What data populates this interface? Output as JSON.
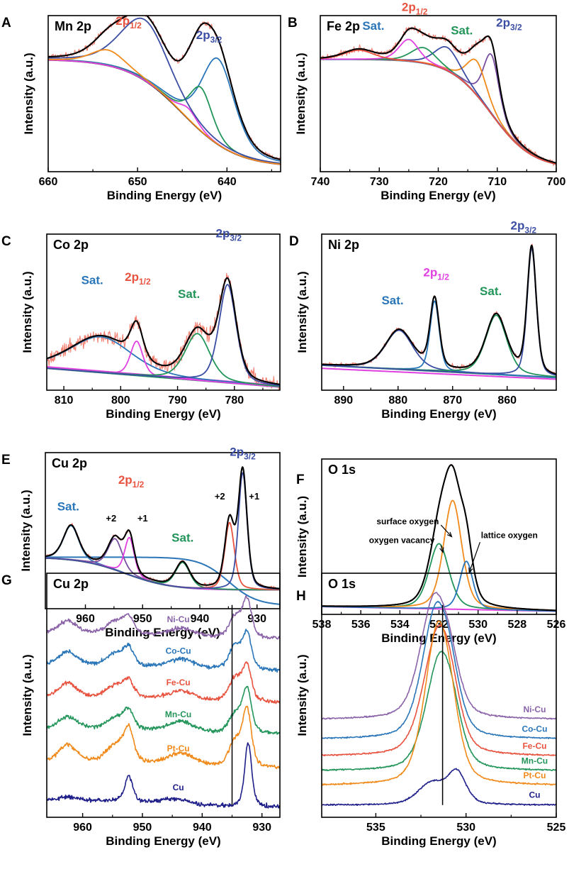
{
  "chart_data": [
    {
      "id": "A",
      "type": "line",
      "title": "Mn 2p",
      "xlabel": "Binding Energy (eV)",
      "ylabel": "Intensity (a.u.)",
      "xlim": [
        660,
        634
      ],
      "xticks": [
        660,
        650,
        640
      ],
      "annotations": [
        {
          "text": "2p",
          "sub": "1/2",
          "x": 651,
          "y": 0.94,
          "color": "#e8533f"
        },
        {
          "text": "2p",
          "sub": "3/2",
          "x": 642,
          "y": 0.85,
          "color": "#3b4ea3"
        }
      ],
      "components": [
        {
          "name": "raw",
          "color": "#f28072",
          "noise": 0.025,
          "sum": true
        },
        {
          "name": "background",
          "color": "#1a1a1a",
          "bg": {
            "type": "step",
            "low": 0.03,
            "high": 0.72,
            "center": 645,
            "width": 3
          }
        },
        {
          "name": "peak-1",
          "color": "#2a76b8",
          "peaks": [
            [
              641.0,
              0.55,
              2.2
            ]
          ]
        },
        {
          "name": "peak-2",
          "color": "#23955a",
          "peaks": [
            [
              642.9,
              0.28,
              1.5
            ]
          ]
        },
        {
          "name": "peak-3",
          "color": "#e040e0",
          "peaks": [
            [
              644.3,
              0.07,
              1.2
            ]
          ]
        },
        {
          "name": "peak-4",
          "color": "#3b4ea3",
          "peaks": [
            [
              649.2,
              0.39,
              3.2
            ]
          ]
        },
        {
          "name": "peak-5",
          "color": "#f08a1a",
          "peaks": [
            [
              653.3,
              0.1,
              2.2
            ]
          ]
        },
        {
          "name": "envelope",
          "color": "#000000",
          "sum": true
        }
      ]
    },
    {
      "id": "B",
      "type": "line",
      "title": "Fe 2p",
      "xlabel": "Binding Energy (eV)",
      "ylabel": "Intensity (a.u.)",
      "xlim": [
        740,
        700
      ],
      "xticks": [
        740,
        730,
        720,
        710,
        700
      ],
      "annotations": [
        {
          "text": "Sat.",
          "x": 731,
          "y": 0.91,
          "color": "#2a76b8"
        },
        {
          "text": "2p",
          "sub": "1/2",
          "x": 724,
          "y": 1.03,
          "color": "#e8533f"
        },
        {
          "text": "Sat.",
          "x": 716,
          "y": 0.88,
          "color": "#23955a"
        },
        {
          "text": "2p",
          "sub": "3/2",
          "x": 708,
          "y": 0.93,
          "color": "#3b4ea3"
        }
      ],
      "components": [
        {
          "name": "raw",
          "color": "#f28072",
          "noise": 0.03,
          "sum": true
        },
        {
          "name": "background",
          "color": "#2a76b8",
          "bg": {
            "type": "step",
            "low": 0.02,
            "high": 0.72,
            "center": 711,
            "width": 3.5
          }
        },
        {
          "name": "peak-1",
          "color": "#7a4ea0",
          "peaks": [
            [
              711.0,
              0.38,
              1.6
            ]
          ]
        },
        {
          "name": "peak-2",
          "color": "#f08a1a",
          "peaks": [
            [
              713.5,
              0.22,
              2.0
            ]
          ]
        },
        {
          "name": "peak-3",
          "color": "#3b4ea3",
          "peaks": [
            [
              718.5,
              0.15,
              2.5
            ]
          ]
        },
        {
          "name": "peak-4",
          "color": "#23955a",
          "peaks": [
            [
              722.5,
              0.1,
              2.5
            ]
          ]
        },
        {
          "name": "peak-5",
          "color": "#e040e0",
          "peaks": [
            [
              725.0,
              0.14,
              2.0
            ]
          ]
        },
        {
          "name": "peak-6",
          "color": "#e8533f",
          "peaks": [
            [
              733.5,
              0.06,
              3.0
            ]
          ]
        },
        {
          "name": "envelope",
          "color": "#000000",
          "sum": true
        }
      ]
    },
    {
      "id": "C",
      "type": "line",
      "title": "Co 2p",
      "xlabel": "Binding Energy (eV)",
      "ylabel": "Intensity (a.u.)",
      "xlim": [
        813,
        772
      ],
      "xticks": [
        810,
        800,
        790,
        780
      ],
      "annotations": [
        {
          "text": "Sat.",
          "x": 805,
          "y": 0.68,
          "color": "#2a76b8"
        },
        {
          "text": "2p",
          "sub": "1/2",
          "x": 797,
          "y": 0.7,
          "color": "#e8533f"
        },
        {
          "text": "Sat.",
          "x": 788,
          "y": 0.59,
          "color": "#23955a"
        },
        {
          "text": "2p",
          "sub": "3/2",
          "x": 781,
          "y": 0.98,
          "color": "#3b4ea3"
        }
      ],
      "components": [
        {
          "name": "raw",
          "color": "#f28072",
          "noise": 0.07,
          "sum": true
        },
        {
          "name": "background-1",
          "color": "#23955a",
          "bg": {
            "type": "linear",
            "a": 0.02,
            "b": 0.14
          }
        },
        {
          "name": "background-2",
          "color": "#e040e0",
          "bg": {
            "type": "linear",
            "a": 0.03,
            "b": 0.15
          }
        },
        {
          "name": "peak-1",
          "color": "#2a76b8",
          "peaks": [
            [
              803.5,
              0.23,
              6.5
            ]
          ]
        },
        {
          "name": "peak-2",
          "color": "#e040e0",
          "peaks": [
            [
              797.2,
              0.22,
              1.3
            ]
          ]
        },
        {
          "name": "peak-3",
          "color": "#23955a",
          "peaks": [
            [
              786.5,
              0.3,
              2.6
            ]
          ]
        },
        {
          "name": "peak-4",
          "color": "#3b4ea3",
          "peaks": [
            [
              781.2,
              0.63,
              1.8
            ]
          ]
        },
        {
          "name": "envelope",
          "color": "#000000",
          "sum": true
        }
      ]
    },
    {
      "id": "D",
      "type": "line",
      "title": "Ni 2p",
      "xlabel": "Binding Energy (eV)",
      "ylabel": "Intensity (a.u.)",
      "xlim": [
        894,
        851
      ],
      "xticks": [
        890,
        880,
        870,
        860
      ],
      "annotations": [
        {
          "text": "Sat.",
          "x": 881,
          "y": 0.55,
          "color": "#2a76b8"
        },
        {
          "text": "2p",
          "sub": "1/2",
          "x": 873,
          "y": 0.73,
          "color": "#e040e0"
        },
        {
          "text": "Sat.",
          "x": 863,
          "y": 0.61,
          "color": "#23955a"
        },
        {
          "text": "2p",
          "sub": "3/2",
          "x": 857,
          "y": 1.03,
          "color": "#3b4ea3"
        }
      ],
      "components": [
        {
          "name": "raw",
          "color": "#f28072",
          "noise": 0.022,
          "sum": true
        },
        {
          "name": "background-1",
          "color": "#23955a",
          "bg": {
            "type": "linear",
            "a": 0.08,
            "b": 0.16
          }
        },
        {
          "name": "background-2",
          "color": "#e040e0",
          "bg": {
            "type": "linear",
            "a": 0.07,
            "b": 0.14
          }
        },
        {
          "name": "peak-1",
          "color": "#3b4ea3",
          "peaks": [
            [
              879.8,
              0.25,
              3.0
            ]
          ]
        },
        {
          "name": "peak-2",
          "color": "#2a76b8",
          "peaks": [
            [
              873.3,
              0.45,
              1.0
            ]
          ]
        },
        {
          "name": "peak-3",
          "color": "#23955a",
          "peaks": [
            [
              862.0,
              0.38,
              2.3
            ]
          ]
        },
        {
          "name": "peak-4",
          "color": "#3b4ea3",
          "peaks": [
            [
              855.5,
              0.82,
              1.0
            ]
          ]
        },
        {
          "name": "envelope",
          "color": "#000000",
          "sum": true
        }
      ]
    },
    {
      "id": "E",
      "type": "line",
      "title": "Cu 2p",
      "xlabel": "Binding Energy (eV)",
      "ylabel": "Intensity (a.u.)",
      "xlim": [
        967,
        926
      ],
      "xticks": [
        960,
        950,
        940,
        930
      ],
      "annotations": [
        {
          "text": "Sat.",
          "x": 963,
          "y": 0.63,
          "color": "#2a76b8"
        },
        {
          "text": "2p",
          "sub": "1/2",
          "x": 952,
          "y": 0.8,
          "color": "#e8533f"
        },
        {
          "text": "+2",
          "x": 955.5,
          "y": 0.56,
          "color": "#000000",
          "size": "m"
        },
        {
          "text": "+1",
          "x": 950,
          "y": 0.56,
          "color": "#000000",
          "size": "m"
        },
        {
          "text": "Sat.",
          "x": 943,
          "y": 0.43,
          "color": "#23955a"
        },
        {
          "text": "+2",
          "x": 936.5,
          "y": 0.7,
          "color": "#000000",
          "size": "m"
        },
        {
          "text": "+1",
          "x": 930.5,
          "y": 0.7,
          "color": "#000000",
          "size": "m"
        },
        {
          "text": "2p",
          "sub": "3/2",
          "x": 932.5,
          "y": 0.98,
          "color": "#3b4ea3"
        }
      ],
      "components": [
        {
          "name": "raw",
          "color": "#f28072",
          "noise": 0.018,
          "sum": true
        },
        {
          "name": "background-1",
          "color": "#23955a",
          "bg": {
            "type": "step",
            "low": 0.12,
            "high": 0.33,
            "center": 953,
            "width": 4
          }
        },
        {
          "name": "background-2",
          "color": "#2a76b8",
          "bg": {
            "type": "step",
            "low": 0.02,
            "high": 0.33,
            "center": 935,
            "width": 2.5
          }
        },
        {
          "name": "peak-1",
          "color": "#2a76b8",
          "peaks": [
            [
              962.5,
              0.22,
              1.6
            ]
          ]
        },
        {
          "name": "peak-2",
          "color": "#7a4ea0",
          "peaks": [
            [
              954.8,
              0.2,
              1.5
            ]
          ]
        },
        {
          "name": "peak-3",
          "color": "#e040e0",
          "peaks": [
            [
              952.3,
              0.24,
              1.0
            ]
          ]
        },
        {
          "name": "peak-4",
          "color": "#23955a",
          "peaks": [
            [
              943.0,
              0.16,
              1.5
            ]
          ]
        },
        {
          "name": "peak-5",
          "color": "#e8533f",
          "peaks": [
            [
              934.8,
              0.43,
              1.0
            ]
          ]
        },
        {
          "name": "peak-6",
          "color": "#3b4ea3",
          "peaks": [
            [
              932.5,
              0.75,
              0.9
            ]
          ]
        },
        {
          "name": "envelope",
          "color": "#000000",
          "sum": true
        }
      ]
    },
    {
      "id": "F",
      "type": "line",
      "title": "O 1s",
      "xlabel": "Binding Energy (eV)",
      "ylabel": "Intensity (a.u.)",
      "xlim": [
        538,
        526
      ],
      "xticks": [
        538,
        536,
        534,
        532,
        530,
        528,
        526
      ],
      "annotations": [
        {
          "text": "surface oxygen",
          "x": 533.6,
          "y": 0.58,
          "color": "#000000",
          "size": "s"
        },
        {
          "text": "oxygen vacancy",
          "x": 533.9,
          "y": 0.46,
          "color": "#000000",
          "size": "s"
        },
        {
          "text": "lattice oxygen",
          "x": 528.4,
          "y": 0.49,
          "color": "#000000",
          "size": "s"
        }
      ],
      "arrows": [
        {
          "from": [
            531.9,
            0.575
          ],
          "to": [
            531.35,
            0.5
          ]
        },
        {
          "from": [
            531.9,
            0.445
          ],
          "to": [
            531.8,
            0.4
          ]
        },
        {
          "from": [
            529.9,
            0.465
          ],
          "to": [
            530.45,
            0.27
          ]
        }
      ],
      "components": [
        {
          "name": "raw",
          "color": "#f28072",
          "noise": 0.006,
          "sum": true
        },
        {
          "name": "background",
          "color": "#e040e0",
          "bg": {
            "type": "linear",
            "a": 0.02,
            "b": 0.05
          }
        },
        {
          "name": "peak-vacancy",
          "color": "#23955a",
          "peaks": [
            [
              532.0,
              0.42,
              0.6
            ]
          ]
        },
        {
          "name": "peak-surface",
          "color": "#f08a1a",
          "peaks": [
            [
              531.3,
              0.7,
              0.55
            ]
          ]
        },
        {
          "name": "peak-lattice",
          "color": "#2a76b8",
          "peaks": [
            [
              530.6,
              0.31,
              0.4
            ]
          ]
        },
        {
          "name": "envelope",
          "color": "#000000",
          "sum": true
        }
      ]
    },
    {
      "id": "G",
      "type": "line",
      "title": "Cu 2p",
      "xlabel": "Binding Energy (eV)",
      "ylabel": "Intensity (a.u.)",
      "xlim": [
        966,
        927
      ],
      "xticks": [
        960,
        950,
        940,
        930
      ],
      "vline": 935,
      "stacked": [
        {
          "name": "Ni-Cu",
          "color": "#8a63a8",
          "offset": 0.73,
          "scale": 0.19
        },
        {
          "name": "Co-Cu",
          "color": "#2a76b8",
          "offset": 0.6,
          "scale": 0.19
        },
        {
          "name": "Fe-Cu",
          "color": "#e8533f",
          "offset": 0.47,
          "scale": 0.19
        },
        {
          "name": "Mn-Cu",
          "color": "#23955a",
          "offset": 0.34,
          "scale": 0.19
        },
        {
          "name": "Pt-Cu",
          "color": "#f08a1a",
          "offset": 0.2,
          "scale": 0.23
        },
        {
          "name": "Cu",
          "color": "#1f1f8a",
          "offset": 0.04,
          "scale": 0.26
        }
      ],
      "legend_x": 944,
      "legend_dy": 0.07,
      "noise": 0.012
    },
    {
      "id": "H",
      "type": "line",
      "title": "O 1s",
      "xlabel": "Binding Energy (eV)",
      "ylabel": "Intensity (a.u.)",
      "xlim": [
        538,
        525
      ],
      "xticks": [
        535,
        530,
        525
      ],
      "vline": 531.3,
      "stacked": [
        {
          "name": "Ni-Cu",
          "color": "#8a63a8",
          "offset": 0.4,
          "scale": 0.58
        },
        {
          "name": "Co-Cu",
          "color": "#2a76b8",
          "offset": 0.32,
          "scale": 0.6
        },
        {
          "name": "Fe-Cu",
          "color": "#e8533f",
          "offset": 0.25,
          "scale": 0.58
        },
        {
          "name": "Mn-Cu",
          "color": "#23955a",
          "offset": 0.19,
          "scale": 0.56
        },
        {
          "name": "Pt-Cu",
          "color": "#f08a1a",
          "offset": 0.13,
          "scale": 0.66
        },
        {
          "name": "Cu",
          "color": "#1f1f8a",
          "offset": 0.05,
          "scale": 0.18
        }
      ],
      "legend_x": 526.2,
      "legend_dy": 0.03,
      "noise": 0.004
    }
  ]
}
